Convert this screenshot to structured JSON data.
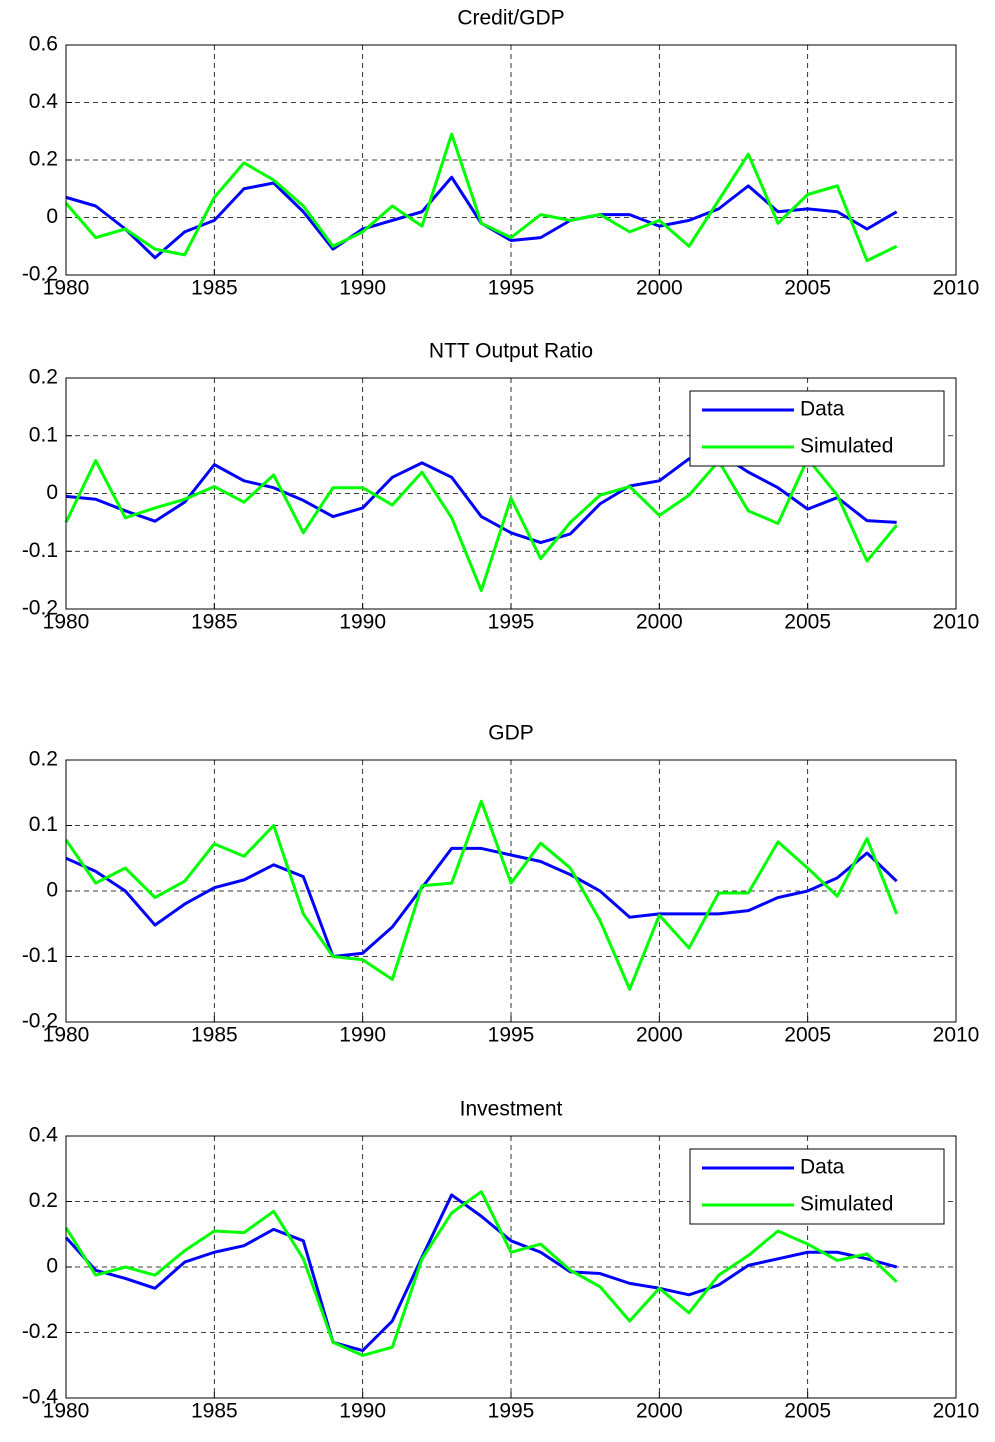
{
  "chart_data": [
    {
      "type": "line",
      "title": "Credit/GDP",
      "x": [
        1980,
        1981,
        1982,
        1983,
        1984,
        1985,
        1986,
        1987,
        1988,
        1989,
        1990,
        1991,
        1992,
        1993,
        1994,
        1995,
        1996,
        1997,
        1998,
        1999,
        2000,
        2001,
        2002,
        2003,
        2004,
        2005,
        2006,
        2007,
        2008
      ],
      "series": [
        {
          "color": "#0000ff",
          "values": [
            0.07,
            0.04,
            -0.04,
            -0.14,
            -0.05,
            -0.01,
            0.1,
            0.12,
            0.02,
            -0.11,
            -0.04,
            -0.01,
            0.02,
            0.14,
            -0.02,
            -0.08,
            -0.07,
            -0.01,
            0.01,
            0.01,
            -0.03,
            -0.01,
            0.03,
            0.11,
            0.02,
            0.03,
            0.02,
            -0.04,
            0.02
          ]
        },
        {
          "color": "#00ff00",
          "values": [
            0.05,
            -0.07,
            -0.04,
            -0.11,
            -0.13,
            0.07,
            0.19,
            0.13,
            0.04,
            -0.1,
            -0.05,
            0.04,
            -0.03,
            0.29,
            -0.02,
            -0.07,
            0.01,
            -0.01,
            0.01,
            -0.05,
            -0.01,
            -0.1,
            0.06,
            0.22,
            -0.02,
            0.08,
            0.11,
            -0.15,
            -0.1
          ]
        }
      ],
      "xlim": [
        1980,
        2010
      ],
      "xticks": [
        1980,
        1985,
        1990,
        1995,
        2000,
        2005,
        2010
      ],
      "ylim": [
        -0.2,
        0.6
      ],
      "yticks": [
        -0.2,
        0,
        0.2,
        0.4,
        0.6
      ],
      "grid": true
    },
    {
      "type": "line",
      "title": "NTT Output Ratio",
      "x": [
        1980,
        1981,
        1982,
        1983,
        1984,
        1985,
        1986,
        1987,
        1988,
        1989,
        1990,
        1991,
        1992,
        1993,
        1994,
        1995,
        1996,
        1997,
        1998,
        1999,
        2000,
        2001,
        2002,
        2003,
        2004,
        2005,
        2006,
        2007,
        2008
      ],
      "series": [
        {
          "name": "Data",
          "color": "#0000ff",
          "values": [
            -0.005,
            -0.01,
            -0.03,
            -0.048,
            -0.015,
            0.05,
            0.022,
            0.01,
            -0.012,
            -0.04,
            -0.025,
            0.028,
            0.053,
            0.028,
            -0.04,
            -0.068,
            -0.085,
            -0.07,
            -0.018,
            0.013,
            0.022,
            0.06,
            0.07,
            0.037,
            0.01,
            -0.027,
            -0.007,
            -0.047,
            -0.05
          ]
        },
        {
          "name": "Simulated",
          "color": "#00ff00",
          "values": [
            -0.05,
            0.057,
            -0.042,
            -0.025,
            -0.01,
            0.012,
            -0.015,
            0.032,
            -0.068,
            0.01,
            0.01,
            -0.02,
            0.037,
            -0.042,
            -0.168,
            -0.008,
            -0.113,
            -0.05,
            -0.003,
            0.012,
            -0.038,
            -0.003,
            0.056,
            -0.03,
            -0.052,
            0.06,
            -0.003,
            -0.117,
            -0.055
          ]
        }
      ],
      "xlim": [
        1980,
        2010
      ],
      "xticks": [
        1980,
        1985,
        1990,
        1995,
        2000,
        2005,
        2010
      ],
      "ylim": [
        -0.2,
        0.2
      ],
      "yticks": [
        -0.2,
        -0.1,
        0,
        0.1,
        0.2
      ],
      "grid": true,
      "legend": "upper right"
    },
    {
      "type": "line",
      "title": "GDP",
      "x": [
        1980,
        1981,
        1982,
        1983,
        1984,
        1985,
        1986,
        1987,
        1988,
        1989,
        1990,
        1991,
        1992,
        1993,
        1994,
        1995,
        1996,
        1997,
        1998,
        1999,
        2000,
        2001,
        2002,
        2003,
        2004,
        2005,
        2006,
        2007,
        2008
      ],
      "series": [
        {
          "color": "#0000ff",
          "values": [
            0.05,
            0.03,
            0.0,
            -0.052,
            -0.02,
            0.005,
            0.017,
            0.04,
            0.022,
            -0.1,
            -0.095,
            -0.055,
            0.005,
            0.065,
            0.065,
            0.055,
            0.045,
            0.025,
            0.0,
            -0.04,
            -0.035,
            -0.035,
            -0.035,
            -0.03,
            -0.01,
            0.0,
            0.02,
            0.058,
            0.015
          ]
        },
        {
          "color": "#00ff00",
          "values": [
            0.078,
            0.012,
            0.035,
            -0.01,
            0.015,
            0.072,
            0.053,
            0.1,
            -0.035,
            -0.1,
            -0.105,
            -0.135,
            0.008,
            0.012,
            0.137,
            0.012,
            0.073,
            0.035,
            -0.045,
            -0.15,
            -0.037,
            -0.087,
            -0.003,
            -0.003,
            0.075,
            0.035,
            -0.008,
            0.08,
            -0.035
          ]
        }
      ],
      "xlim": [
        1980,
        2010
      ],
      "xticks": [
        1980,
        1985,
        1990,
        1995,
        2000,
        2005,
        2010
      ],
      "ylim": [
        -0.2,
        0.2
      ],
      "yticks": [
        -0.2,
        -0.1,
        0,
        0.1,
        0.2
      ],
      "grid": true
    },
    {
      "type": "line",
      "title": "Investment",
      "x": [
        1980,
        1981,
        1982,
        1983,
        1984,
        1985,
        1986,
        1987,
        1988,
        1989,
        1990,
        1991,
        1992,
        1993,
        1994,
        1995,
        1996,
        1997,
        1998,
        1999,
        2000,
        2001,
        2002,
        2003,
        2004,
        2005,
        2006,
        2007,
        2008
      ],
      "series": [
        {
          "name": "Data",
          "color": "#0000ff",
          "values": [
            0.09,
            -0.01,
            -0.035,
            -0.065,
            0.015,
            0.045,
            0.065,
            0.115,
            0.08,
            -0.23,
            -0.255,
            -0.165,
            0.03,
            0.22,
            0.155,
            0.08,
            0.045,
            -0.015,
            -0.02,
            -0.05,
            -0.065,
            -0.085,
            -0.055,
            0.005,
            0.025,
            0.045,
            0.045,
            0.025,
            0.0
          ]
        },
        {
          "name": "Simulated",
          "color": "#00ff00",
          "values": [
            0.12,
            -0.025,
            0.0,
            -0.025,
            0.05,
            0.11,
            0.105,
            0.17,
            0.025,
            -0.23,
            -0.27,
            -0.245,
            0.025,
            0.165,
            0.23,
            0.045,
            0.07,
            -0.01,
            -0.06,
            -0.165,
            -0.065,
            -0.14,
            -0.025,
            0.035,
            0.11,
            0.07,
            0.02,
            0.04,
            -0.045
          ]
        }
      ],
      "xlim": [
        1980,
        2010
      ],
      "xticks": [
        1980,
        1985,
        1990,
        1995,
        2000,
        2005,
        2010
      ],
      "ylim": [
        -0.4,
        0.4
      ],
      "yticks": [
        -0.4,
        -0.2,
        0,
        0.2,
        0.4
      ],
      "grid": true,
      "legend": "upper right"
    }
  ]
}
